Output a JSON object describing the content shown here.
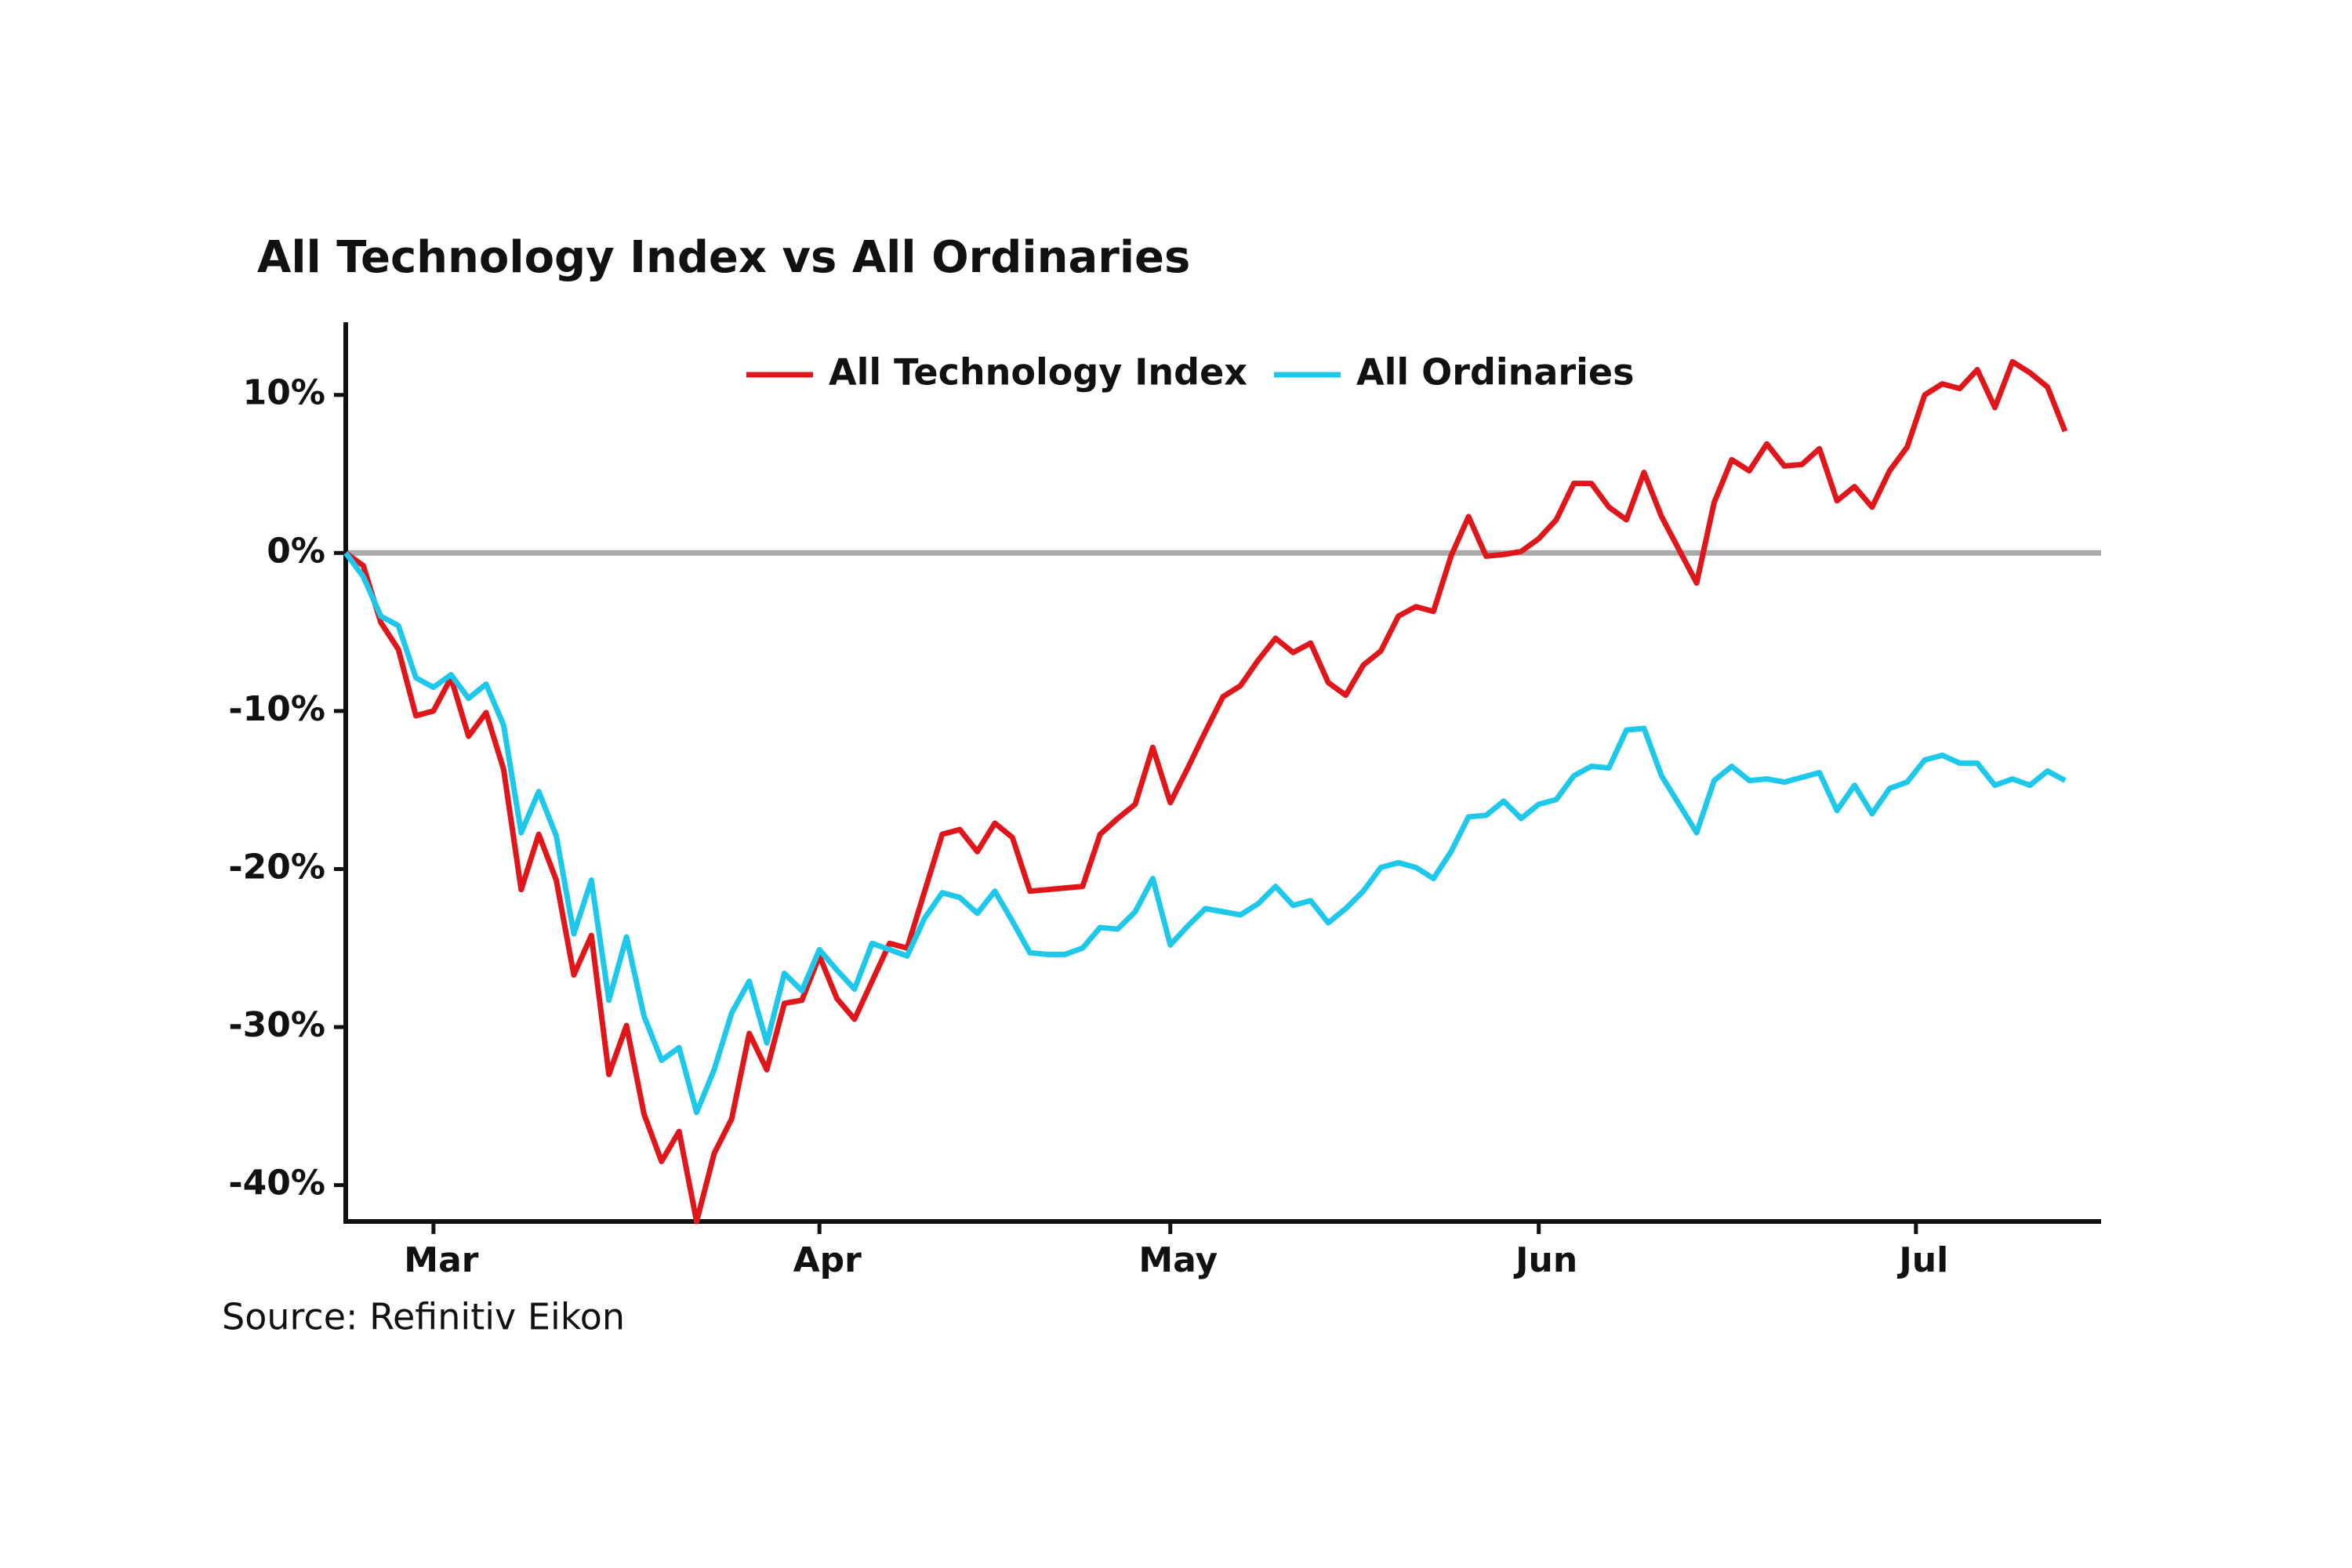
{
  "chart_data": {
    "type": "line",
    "title": "All Technology Index vs All Ordinaries",
    "source": "Source: Refinitiv Eikon",
    "xlim": [
      0,
      98
    ],
    "xticks": [
      {
        "value": 5,
        "label": "Mar"
      },
      {
        "value": 27,
        "label": "Apr"
      },
      {
        "value": 47,
        "label": "May"
      },
      {
        "value": 68,
        "label": "Jun"
      },
      {
        "value": 89.5,
        "label": "Jul"
      }
    ],
    "ylim": [
      -42.3,
      14.6
    ],
    "yticks": [
      {
        "value": -40,
        "label": "-40%"
      },
      {
        "value": -30,
        "label": "-30%"
      },
      {
        "value": -20,
        "label": "-20%"
      },
      {
        "value": -10,
        "label": "-10%"
      },
      {
        "value": 0,
        "label": "0%"
      },
      {
        "value": 10,
        "label": "10%"
      }
    ],
    "legend": "top",
    "series": [
      {
        "name": "All Technology Index",
        "color": "#e0161b",
        "values": [
          0,
          -0.8,
          -4.4,
          -6.1,
          -10.3,
          -10,
          -7.9,
          -11.6,
          -10.1,
          -13.7,
          -21.3,
          -17.8,
          -20.7,
          -26.7,
          -24.2,
          -33,
          -29.9,
          -35.5,
          -38.5,
          -36.6,
          -42.3,
          -38,
          -35.8,
          -30.4,
          -32.7,
          -28.5,
          -28.3,
          -25.5,
          -28.2,
          -29.5,
          -27.1,
          -24.7,
          -25,
          -21.4,
          -17.8,
          -17.5,
          -18.9,
          -17.1,
          -18,
          -21.4,
          -21.3,
          -21.2,
          -21.1,
          -17.8,
          -16.8,
          -15.9,
          -12.3,
          -15.8,
          -13.6,
          -11.3,
          -9.1,
          -8.4,
          -6.8,
          -5.4,
          -6.3,
          -5.7,
          -8.2,
          -9,
          -7.1,
          -6.2,
          -4,
          -3.4,
          -3.7,
          -0.2,
          2.3,
          -0.2,
          -0.1,
          0.1,
          0.9,
          2.1,
          4.4,
          4.4,
          2.9,
          2.1,
          5.1,
          2.3,
          0.2,
          -1.9,
          3.2,
          5.9,
          5.2,
          6.9,
          5.5,
          5.6,
          6.6,
          3.3,
          4.2,
          2.9,
          5.2,
          6.7,
          10,
          10.7,
          10.4,
          11.6,
          9.2,
          12.1,
          11.4,
          10.5,
          7.7
        ]
      },
      {
        "name": "All Ordinaries",
        "color": "#1ec8ea",
        "values": [
          0,
          -1.5,
          -4,
          -4.6,
          -7.9,
          -8.5,
          -7.7,
          -9.2,
          -8.3,
          -10.9,
          -17.7,
          -15.1,
          -17.9,
          -24.1,
          -20.7,
          -28.3,
          -24.3,
          -29.3,
          -32.1,
          -31.3,
          -35.4,
          -32.7,
          -29.1,
          -27.1,
          -31,
          -26.6,
          -27.7,
          -25.1,
          -26.4,
          -27.6,
          -24.7,
          -25.1,
          -25.5,
          -23.1,
          -21.5,
          -21.8,
          -22.8,
          -21.4,
          -23.3,
          -25.3,
          -25.4,
          -25.4,
          -25,
          -23.7,
          -23.8,
          -22.7,
          -20.6,
          -24.8,
          -23.6,
          -22.5,
          -22.7,
          -22.9,
          -22.2,
          -21.1,
          -22.3,
          -22,
          -23.4,
          -22.5,
          -21.4,
          -19.9,
          -19.6,
          -19.9,
          -20.6,
          -18.9,
          -16.7,
          -16.6,
          -15.7,
          -16.8,
          -15.9,
          -15.6,
          -14.1,
          -13.5,
          -13.6,
          -11.2,
          -11.1,
          -14.1,
          -15.9,
          -17.7,
          -14.4,
          -13.5,
          -14.4,
          -14.3,
          -14.5,
          -14.2,
          -13.9,
          -16.3,
          -14.7,
          -16.5,
          -14.9,
          -14.5,
          -13.1,
          -12.8,
          -13.3,
          -13.3,
          -14.7,
          -14.3,
          -14.7,
          -13.8,
          -14.4
        ]
      }
    ]
  }
}
